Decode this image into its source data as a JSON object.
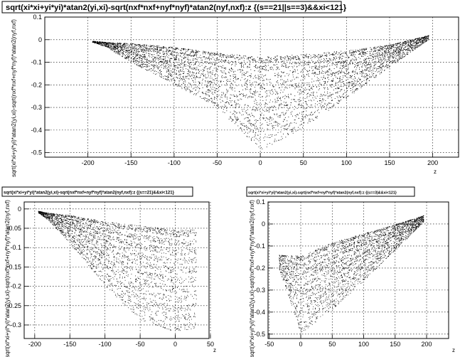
{
  "chart_data": [
    {
      "type": "scatter",
      "title": "sqrt(xi*xi+yi*yi)*atan2(yi,xi)-sqrt(nxf*nxf+nyf*nyf)*atan2(nyf,nxf):z {(s==21||s==3)&&xi<121}",
      "xlabel": "z",
      "ylabel": "sqrt(xi*xi+yi*yi)*atan2(yi,xi)-sqrt(nxf*nxf+nyf*nyf)*atan2(nyf,nxf)",
      "xlim": [
        -250,
        230
      ],
      "ylim": [
        -0.52,
        0.1
      ],
      "xticks": [
        "-200",
        "-150",
        "-100",
        "-50",
        "0",
        "50",
        "100",
        "150",
        "200"
      ],
      "yticks": [
        "0.1",
        "0",
        "-0.1",
        "-0.2",
        "-0.3",
        "-0.4",
        "-0.5"
      ],
      "grid": true,
      "series": [
        {
          "color": "#000000",
          "envelope": {
            "z": [
              -195,
              -180,
              -150,
              -100,
              -50,
              0,
              50,
              100,
              150,
              195
            ],
            "upper": [
              -0.005,
              -0.01,
              -0.015,
              -0.03,
              -0.055,
              -0.07,
              -0.06,
              -0.045,
              -0.02,
              0.02
            ],
            "lower": [
              -0.01,
              -0.03,
              -0.1,
              -0.2,
              -0.3,
              -0.5,
              -0.39,
              -0.26,
              -0.12,
              0.0
            ]
          }
        }
      ]
    },
    {
      "type": "scatter",
      "title": "sqrt(xi*xi+yi*yi)*atan2(yi,xi)-sqrt(nxf*nxf+nyf*nyf)*atan2(nyf,nxf):z {(s==21)&&xi<121}",
      "xlabel": "z",
      "ylabel": "sqrt(xi*xi+yi*yi)*atan2(yi,xi)-sqrt(nxf*nxf+nyf*nyf)*atan2(nyf,nxf)",
      "xlim": [
        -215,
        48
      ],
      "ylim": [
        -0.335,
        0.018
      ],
      "xticks": [
        "-200",
        "-150",
        "-100",
        "-50",
        "0",
        "50"
      ],
      "yticks": [
        "0",
        "-0.05",
        "-0.1",
        "-0.15",
        "-0.2",
        "-0.25",
        "-0.3"
      ],
      "grid": true,
      "series": [
        {
          "color": "#000000",
          "envelope": {
            "z": [
              -195,
              -180,
              -150,
              -100,
              -50,
              0,
              30
            ],
            "upper": [
              -0.005,
              -0.01,
              -0.015,
              -0.03,
              -0.04,
              -0.05,
              -0.05
            ],
            "lower": [
              -0.01,
              -0.03,
              -0.09,
              -0.2,
              -0.29,
              -0.32,
              -0.31
            ]
          }
        }
      ]
    },
    {
      "type": "scatter",
      "title": "sqrt(xi*xi+yi*yi)*atan2(yi,xi)-sqrt(nxf*nxf+nyf*nyf)*atan2(nyf,nxf):z {(s==3)&&xi<121}",
      "xlabel": "z",
      "ylabel": "sqrt(xi*xi+yi*yi)*atan2(yi,xi)-sqrt(nxf*nxf+nyf*nyf)*atan2(nyf,nxf)",
      "xlim": [
        -52,
        235
      ],
      "ylim": [
        -0.52,
        0.1
      ],
      "xticks": [
        "-50",
        "0",
        "50",
        "100",
        "150",
        "200"
      ],
      "yticks": [
        "0.1",
        "0",
        "-0.1",
        "-0.2",
        "-0.3",
        "-0.4",
        "-0.5"
      ],
      "grid": true,
      "series": [
        {
          "color": "#000000",
          "envelope": {
            "z": [
              -35,
              0,
              50,
              100,
              150,
              195
            ],
            "upper": [
              -0.14,
              -0.14,
              -0.08,
              -0.04,
              0.0,
              0.04
            ],
            "lower": [
              -0.2,
              -0.5,
              -0.39,
              -0.26,
              -0.12,
              0.01
            ]
          }
        }
      ]
    }
  ]
}
